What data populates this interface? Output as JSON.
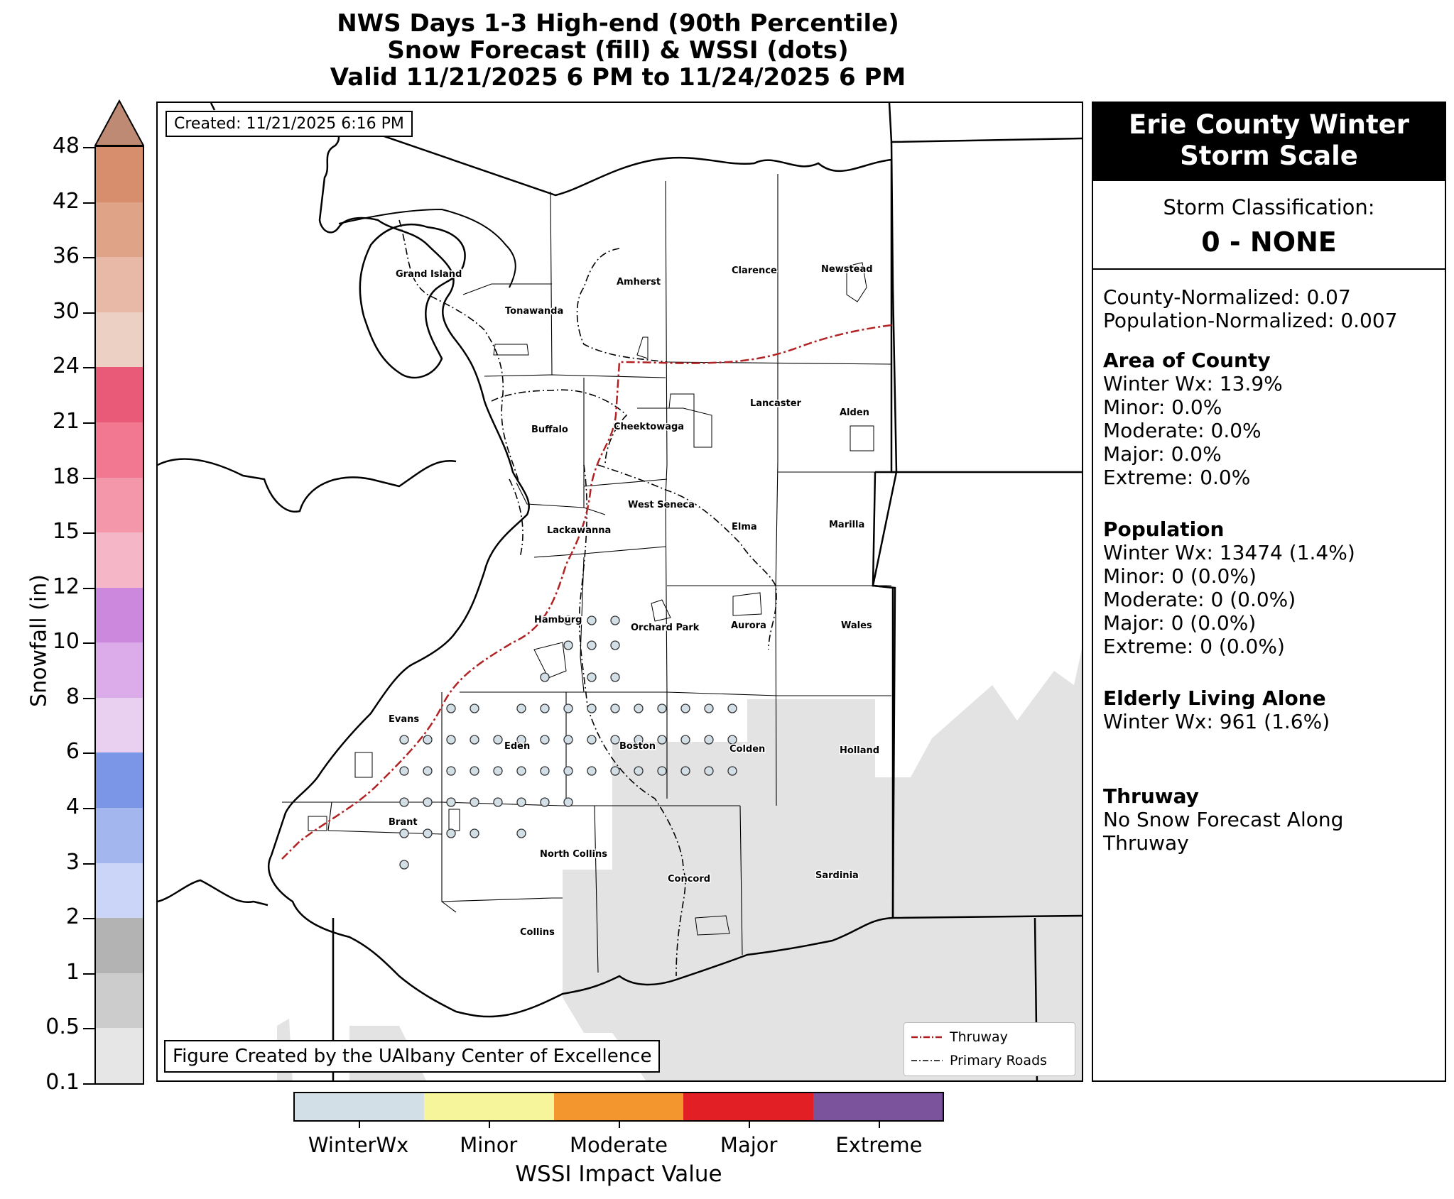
{
  "title": {
    "line1": "NWS Days 1-3 High-end (90th Percentile)",
    "line2": "Snow Forecast (fill) & WSSI (dots)",
    "line3": "Valid 11/21/2025 6 PM to 11/24/2025 6 PM"
  },
  "created": "Created: 11/21/2025 6:16 PM",
  "credit": "Figure Created by the UAlbany Center of Excellence",
  "map_legend": {
    "thruway": "Thruway",
    "primary_roads": "Primary Roads",
    "thruway_color": "#b22222",
    "roads_color": "#000000"
  },
  "towns": [
    "Grand Island",
    "Tonawanda",
    "Amherst",
    "Clarence",
    "Newstead",
    "Buffalo",
    "Cheektowaga",
    "Lancaster",
    "Alden",
    "West Seneca",
    "Elma",
    "Marilla",
    "Lackawanna",
    "Hamburg",
    "Orchard Park",
    "Aurora",
    "Wales",
    "Evans",
    "Eden",
    "Boston",
    "Colden",
    "Holland",
    "Brant",
    "North Collins",
    "Concord",
    "Sardinia",
    "Collins"
  ],
  "snowfall_colorbar": {
    "title": "Snowfall (in)",
    "ticks": [
      "0.1",
      "0.5",
      "1",
      "2",
      "3",
      "4",
      "6",
      "8",
      "10",
      "12",
      "15",
      "18",
      "21",
      "24",
      "30",
      "36",
      "42",
      "48"
    ],
    "colors": [
      "#e6e6e6",
      "#cccccc",
      "#b3b3b3",
      "#cad5f7",
      "#a3b6ee",
      "#7b96e6",
      "#e9d0f1",
      "#dcabe9",
      "#cc88dd",
      "#f5b6c8",
      "#f597ab",
      "#f27891",
      "#e85a78",
      "#edd0c4",
      "#e7b9a6",
      "#dfa387",
      "#d68e6d",
      "#bf8a73"
    ]
  },
  "wssi_colorbar": {
    "title": "WSSI Impact Value",
    "labels": [
      "WinterWx",
      "Minor",
      "Moderate",
      "Major",
      "Extreme"
    ],
    "colors": [
      "#d3dfe6",
      "#f7f59b",
      "#f4962e",
      "#e31f26",
      "#7b539d"
    ]
  },
  "panel": {
    "header": [
      "Erie County Winter",
      "Storm Scale"
    ],
    "classification_label": "Storm Classification:",
    "classification_value": "0 - NONE",
    "county_normalized": "County-Normalized: 0.07",
    "population_normalized": "Population-Normalized: 0.007",
    "area_title": "Area of County",
    "area": [
      "Winter Wx: 13.9%",
      "Minor: 0.0%",
      "Moderate: 0.0%",
      "Major: 0.0%",
      "Extreme: 0.0%"
    ],
    "population_title": "Population",
    "population": [
      "Winter Wx: 13474 (1.4%)",
      "Minor: 0 (0.0%)",
      "Moderate: 0 (0.0%)",
      "Major: 0 (0.0%)",
      "Extreme: 0 (0.0%)"
    ],
    "elderly_title": "Elderly Living Alone",
    "elderly": [
      "Winter Wx: 961 (1.6%)"
    ],
    "thruway_title": "Thruway",
    "thruway": [
      "No Snow Forecast Along",
      "Thruway"
    ]
  }
}
